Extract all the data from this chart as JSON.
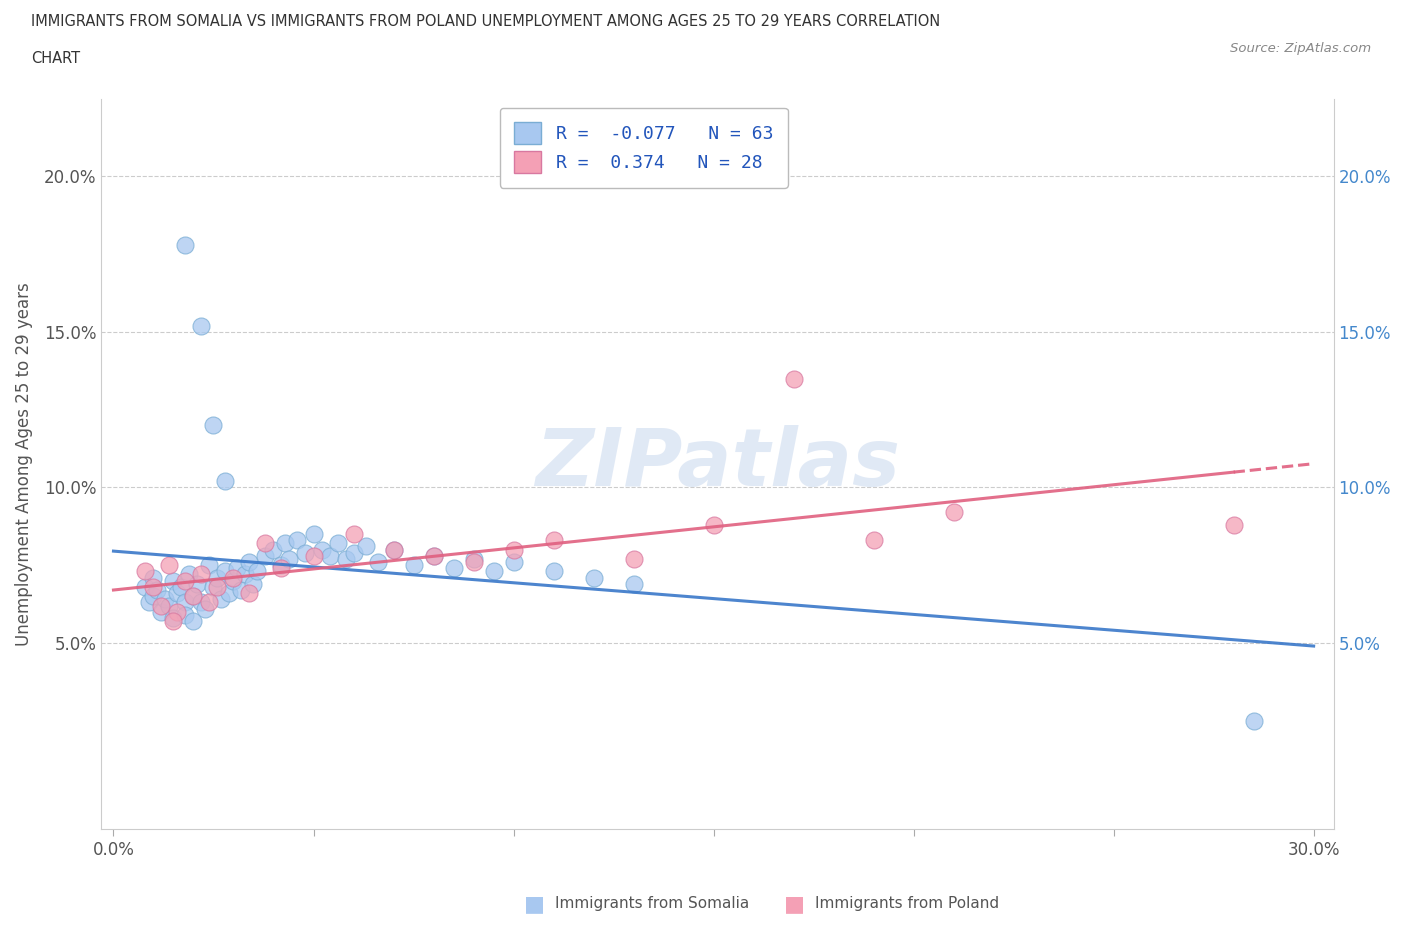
{
  "title_line1": "IMMIGRANTS FROM SOMALIA VS IMMIGRANTS FROM POLAND UNEMPLOYMENT AMONG AGES 25 TO 29 YEARS CORRELATION",
  "title_line2": "CHART",
  "source": "Source: ZipAtlas.com",
  "ylabel": "Unemployment Among Ages 25 to 29 years",
  "xlim": [
    -0.003,
    0.305
  ],
  "ylim": [
    -0.01,
    0.225
  ],
  "xticks": [
    0.0,
    0.05,
    0.1,
    0.15,
    0.2,
    0.25,
    0.3
  ],
  "yticks": [
    0.05,
    0.1,
    0.15,
    0.2
  ],
  "somalia_R": -0.077,
  "somalia_N": 63,
  "poland_R": 0.374,
  "poland_N": 28,
  "somalia_color": "#a8c8f0",
  "somalia_edge": "#7aadd4",
  "poland_color": "#f4a0b5",
  "poland_edge": "#d878a0",
  "somalia_line_color": "#3a78c9",
  "poland_line_color": "#e06080",
  "watermark": "ZIPatlas",
  "legend_somalia": "Immigrants from Somalia",
  "legend_poland": "Immigrants from Poland",
  "somalia_x": [
    0.008,
    0.009,
    0.01,
    0.01,
    0.011,
    0.012,
    0.013,
    0.014,
    0.015,
    0.015,
    0.016,
    0.017,
    0.018,
    0.018,
    0.019,
    0.02,
    0.02,
    0.021,
    0.022,
    0.023,
    0.024,
    0.025,
    0.026,
    0.027,
    0.028,
    0.029,
    0.03,
    0.031,
    0.032,
    0.033,
    0.034,
    0.035,
    0.036,
    0.038,
    0.04,
    0.042,
    0.043,
    0.044,
    0.046,
    0.048,
    0.05,
    0.052,
    0.054,
    0.056,
    0.058,
    0.06,
    0.063,
    0.066,
    0.07,
    0.075,
    0.08,
    0.085,
    0.09,
    0.095,
    0.1,
    0.11,
    0.12,
    0.13,
    0.018,
    0.022,
    0.025,
    0.028,
    0.285
  ],
  "somalia_y": [
    0.068,
    0.063,
    0.071,
    0.065,
    0.067,
    0.06,
    0.064,
    0.062,
    0.07,
    0.058,
    0.066,
    0.068,
    0.063,
    0.059,
    0.072,
    0.065,
    0.057,
    0.069,
    0.063,
    0.061,
    0.075,
    0.068,
    0.071,
    0.064,
    0.073,
    0.066,
    0.07,
    0.074,
    0.067,
    0.072,
    0.076,
    0.069,
    0.073,
    0.078,
    0.08,
    0.075,
    0.082,
    0.077,
    0.083,
    0.079,
    0.085,
    0.08,
    0.078,
    0.082,
    0.077,
    0.079,
    0.081,
    0.076,
    0.08,
    0.075,
    0.078,
    0.074,
    0.077,
    0.073,
    0.076,
    0.073,
    0.071,
    0.069,
    0.178,
    0.152,
    0.12,
    0.102,
    0.025
  ],
  "poland_x": [
    0.008,
    0.01,
    0.012,
    0.014,
    0.016,
    0.018,
    0.02,
    0.022,
    0.024,
    0.026,
    0.03,
    0.034,
    0.038,
    0.042,
    0.05,
    0.06,
    0.07,
    0.08,
    0.09,
    0.1,
    0.11,
    0.13,
    0.15,
    0.17,
    0.19,
    0.21,
    0.28,
    0.015
  ],
  "poland_y": [
    0.073,
    0.068,
    0.062,
    0.075,
    0.06,
    0.07,
    0.065,
    0.072,
    0.063,
    0.068,
    0.071,
    0.066,
    0.082,
    0.074,
    0.078,
    0.085,
    0.08,
    0.078,
    0.076,
    0.08,
    0.083,
    0.077,
    0.088,
    0.135,
    0.083,
    0.092,
    0.088,
    0.057
  ]
}
